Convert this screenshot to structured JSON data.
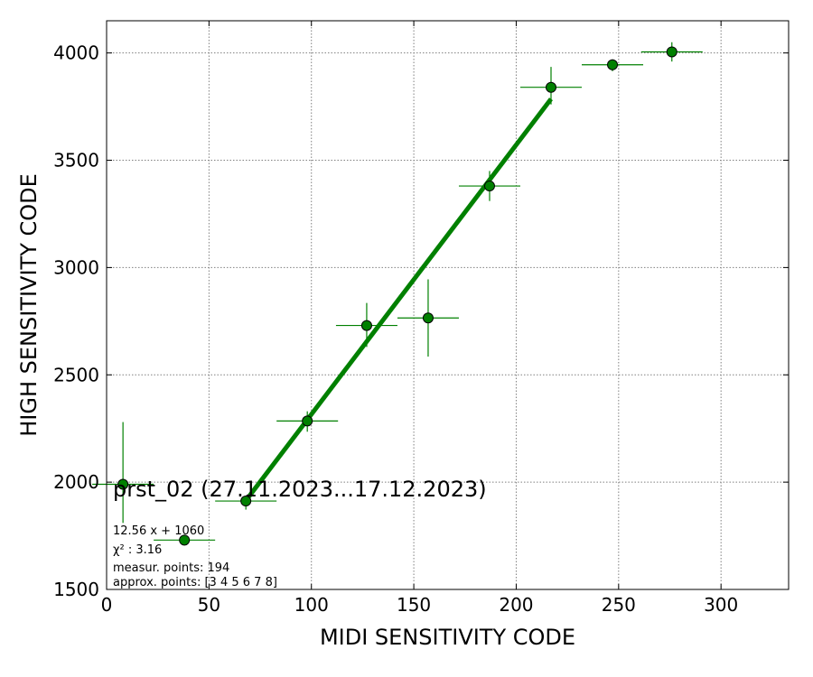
{
  "chart_data": {
    "type": "scatter",
    "title": "prst_02 (27.11.2023...17.12.2023)",
    "xlabel": "MIDI SENSITIVITY CODE",
    "ylabel": "HIGH SENSITIVITY CODE",
    "xlim": [
      0,
      333
    ],
    "ylim": [
      1500,
      4150
    ],
    "xticks": [
      0,
      50,
      100,
      150,
      200,
      250,
      300
    ],
    "yticks": [
      1500,
      2000,
      2500,
      3000,
      3500,
      4000
    ],
    "grid": true,
    "colors": {
      "marker": "#008000",
      "marker_edge": "#000000",
      "line": "#008000",
      "grid": "#808080"
    },
    "points": [
      {
        "x": 8,
        "y": 1990,
        "xerr": [
          15,
          15
        ],
        "yerr": [
          180,
          290
        ]
      },
      {
        "x": 38,
        "y": 1730,
        "xerr": [
          15,
          15
        ],
        "yerr": [
          25,
          25
        ]
      },
      {
        "x": 68,
        "y": 1912,
        "xerr": [
          15,
          15
        ],
        "yerr": [
          40,
          20
        ]
      },
      {
        "x": 98,
        "y": 2285,
        "xerr": [
          15,
          15
        ],
        "yerr": [
          50,
          45
        ]
      },
      {
        "x": 127,
        "y": 2730,
        "xerr": [
          15,
          15
        ],
        "yerr": [
          100,
          105
        ]
      },
      {
        "x": 157,
        "y": 2765,
        "xerr": [
          15,
          15
        ],
        "yerr": [
          180,
          180
        ]
      },
      {
        "x": 187,
        "y": 3380,
        "xerr": [
          15,
          15
        ],
        "yerr": [
          70,
          70
        ]
      },
      {
        "x": 217,
        "y": 3840,
        "xerr": [
          15,
          15
        ],
        "yerr": [
          80,
          95
        ]
      },
      {
        "x": 247,
        "y": 3945,
        "xerr": [
          15,
          15
        ],
        "yerr": [
          30,
          25
        ]
      },
      {
        "x": 276,
        "y": 4005,
        "xerr": [
          15,
          15
        ],
        "yerr": [
          45,
          45
        ]
      }
    ],
    "fit_line": {
      "x_start": 68,
      "x_end": 217,
      "slope": 12.56,
      "intercept": 1060
    },
    "annotations": {
      "equation": "12.56 x + 1060",
      "chi2": "χ² : 3.16",
      "measur_points": "measur. points: 194",
      "approx_points": "approx. points: [3 4 5 6 7 8]"
    }
  }
}
